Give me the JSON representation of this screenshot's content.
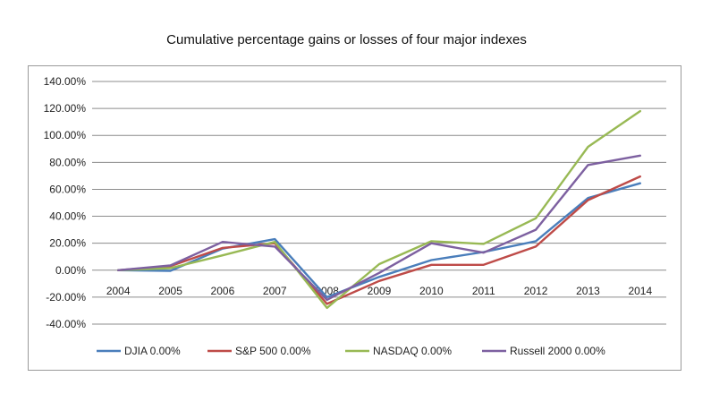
{
  "chart_data": {
    "type": "line",
    "title": "Cumulative percentage gains or losses of four major indexes",
    "categories": [
      "2004",
      "2005",
      "2006",
      "2007",
      "2008",
      "2009",
      "2010",
      "2011",
      "2012",
      "2013",
      "2014"
    ],
    "y_ticks": [
      "140.00%",
      "120.00%",
      "100.00%",
      "80.00%",
      "60.00%",
      "40.00%",
      "20.00%",
      "0.00%",
      "-20.00%",
      "-40.00%"
    ],
    "ylim": [
      -40,
      140
    ],
    "grid": true,
    "legend_position": "bottom",
    "series": [
      {
        "name": "DJIA 0.00%",
        "color": "#4a7ebb",
        "values": [
          0,
          -0.5,
          16,
          23,
          -20,
          -5,
          7.5,
          13.5,
          21.5,
          53.5,
          64.5
        ]
      },
      {
        "name": "S&P 500 0.00%",
        "color": "#be4b48",
        "values": [
          0,
          3,
          16.5,
          20,
          -25,
          -8,
          4,
          4,
          17.5,
          52,
          69.5
        ]
      },
      {
        "name": "NASDAQ 0.00%",
        "color": "#98b954",
        "values": [
          0,
          1.5,
          11,
          21,
          -28,
          4.5,
          21.5,
          19.5,
          38.5,
          91.5,
          118
        ]
      },
      {
        "name": "Russell 2000 0.00%",
        "color": "#7d60a0",
        "values": [
          0,
          3.5,
          21,
          17.5,
          -22,
          -2,
          20,
          13,
          30,
          78,
          85
        ]
      }
    ]
  }
}
